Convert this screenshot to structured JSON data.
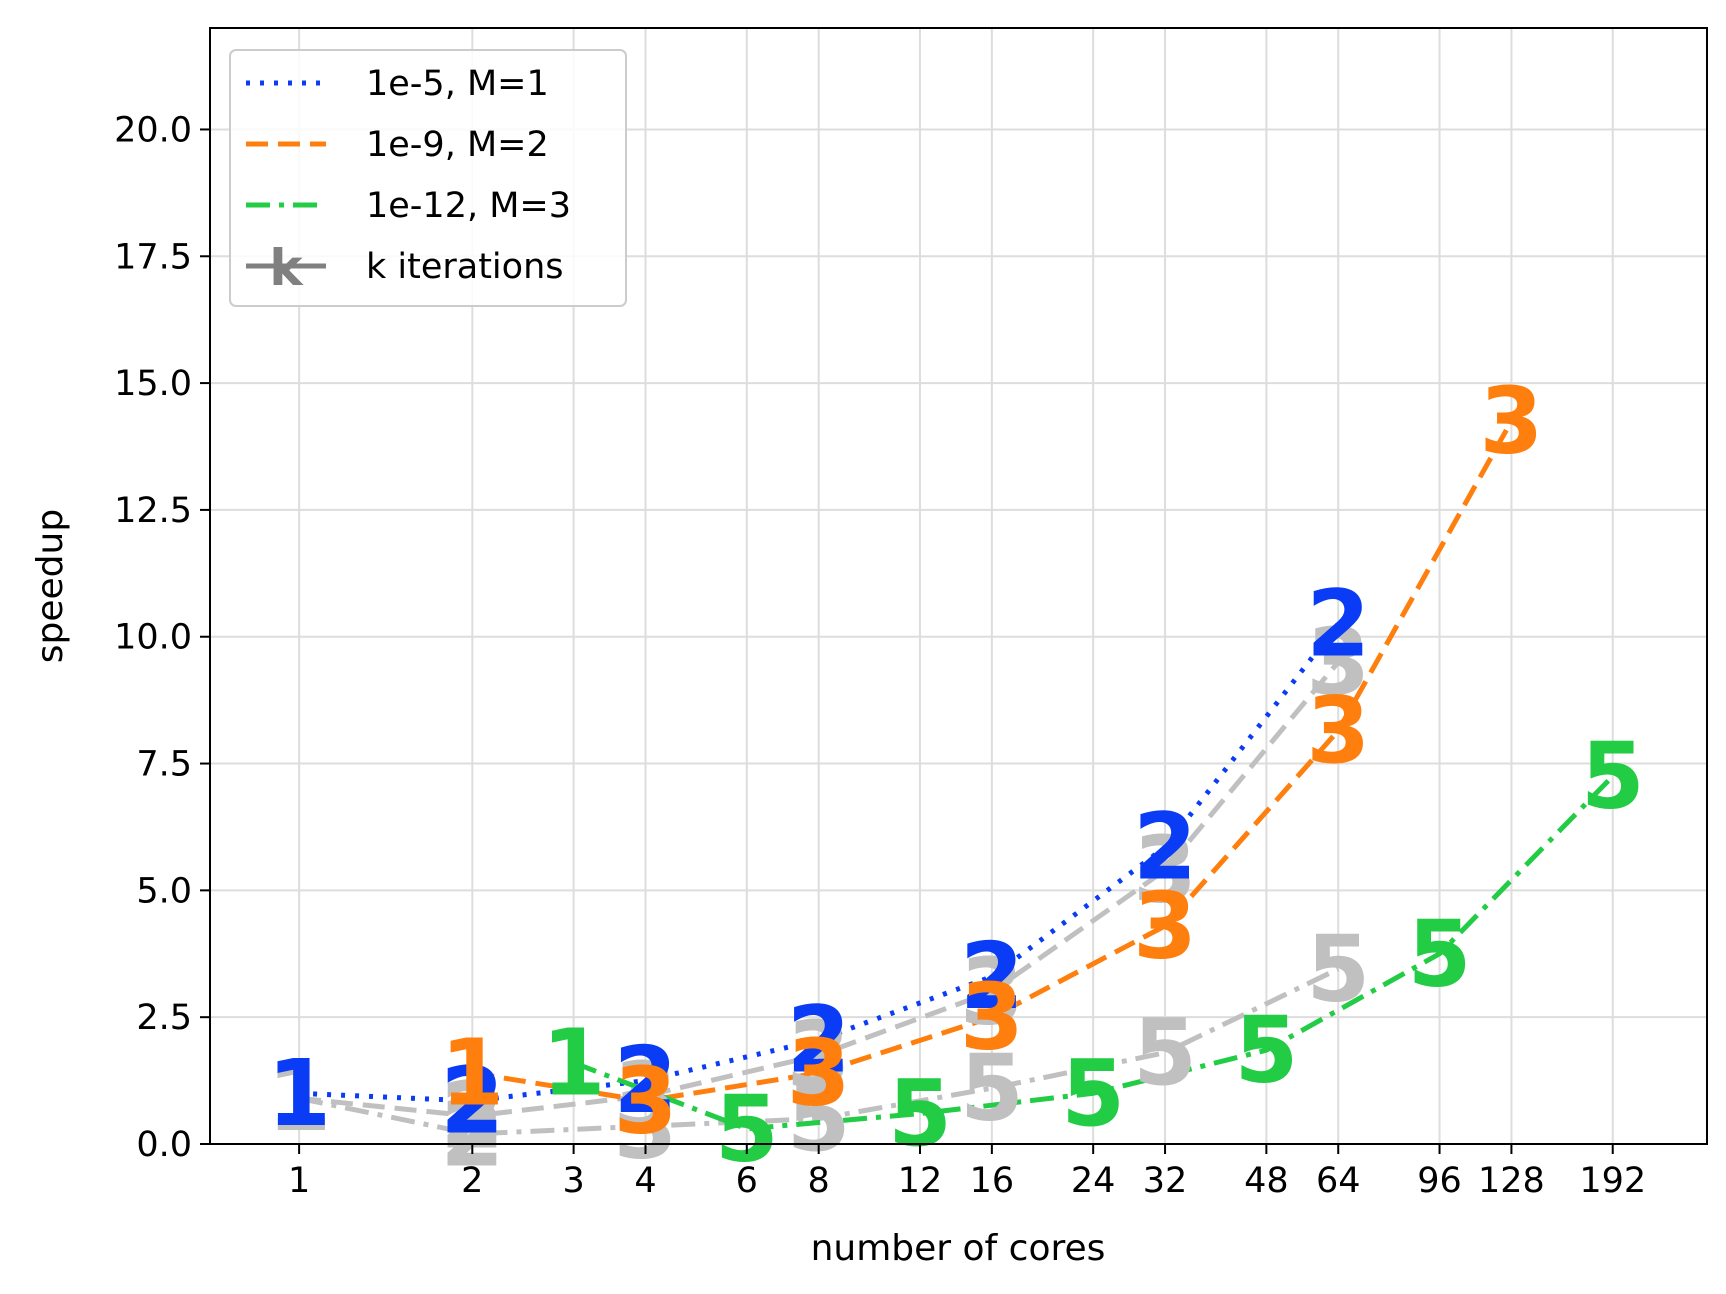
{
  "chart_data": {
    "type": "line",
    "xlabel": "number of cores",
    "ylabel": "speedup",
    "x_scale": "log2",
    "xlim": [
      0.7,
      280
    ],
    "ylim": [
      0,
      22
    ],
    "x_ticks": [
      {
        "value": 1,
        "label": "1"
      },
      {
        "value": 2,
        "label": "2"
      },
      {
        "value": 3,
        "label": "3"
      },
      {
        "value": 4,
        "label": "4"
      },
      {
        "value": 6,
        "label": "6"
      },
      {
        "value": 8,
        "label": "8"
      },
      {
        "value": 12,
        "label": "12"
      },
      {
        "value": 16,
        "label": "16"
      },
      {
        "value": 24,
        "label": "24"
      },
      {
        "value": 32,
        "label": "32"
      },
      {
        "value": 48,
        "label": "48"
      },
      {
        "value": 64,
        "label": "64"
      },
      {
        "value": 96,
        "label": "96"
      },
      {
        "value": 128,
        "label": "128"
      },
      {
        "value": 192,
        "label": "192"
      }
    ],
    "y_ticks": [
      {
        "value": 0,
        "label": "0.0"
      },
      {
        "value": 2.5,
        "label": "2.5"
      },
      {
        "value": 5,
        "label": "5.0"
      },
      {
        "value": 7.5,
        "label": "7.5"
      },
      {
        "value": 10,
        "label": "10.0"
      },
      {
        "value": 12.5,
        "label": "12.5"
      },
      {
        "value": 15,
        "label": "15.0"
      },
      {
        "value": 17.5,
        "label": "17.5"
      },
      {
        "value": 20,
        "label": "20.0"
      }
    ],
    "grid": true,
    "legend_position": "top-left",
    "series": [
      {
        "name": "1e-5, M=1",
        "color": "#0a3cf5",
        "dash": "dotted",
        "points": [
          {
            "x": 1,
            "y": 1.0,
            "k": "1"
          },
          {
            "x": 2,
            "y": 0.85,
            "k": "2"
          },
          {
            "x": 4,
            "y": 1.25,
            "k": "2"
          },
          {
            "x": 8,
            "y": 2.05,
            "k": "2"
          },
          {
            "x": 16,
            "y": 3.3,
            "k": "2"
          },
          {
            "x": 32,
            "y": 5.85,
            "k": "2"
          },
          {
            "x": 64,
            "y": 10.25,
            "k": "2"
          }
        ]
      },
      {
        "name": "1e-9, M=2",
        "color": "#ff7f0e",
        "dash": "dashed",
        "points": [
          {
            "x": 2,
            "y": 1.4,
            "k": "1"
          },
          {
            "x": 4,
            "y": 0.85,
            "k": "3"
          },
          {
            "x": 8,
            "y": 1.4,
            "k": "3"
          },
          {
            "x": 16,
            "y": 2.5,
            "k": "3"
          },
          {
            "x": 32,
            "y": 4.3,
            "k": "3"
          },
          {
            "x": 64,
            "y": 8.15,
            "k": "3"
          },
          {
            "x": 128,
            "y": 14.25,
            "k": "3"
          }
        ]
      },
      {
        "name": "1e-12, M=3",
        "color": "#22cc44",
        "dash": "dashdot",
        "points": [
          {
            "x": 3,
            "y": 1.6,
            "k": "1"
          },
          {
            "x": 6,
            "y": 0.3,
            "k": "5"
          },
          {
            "x": 12,
            "y": 0.6,
            "k": "5"
          },
          {
            "x": 24,
            "y": 1.0,
            "k": "5"
          },
          {
            "x": 48,
            "y": 1.85,
            "k": "5"
          },
          {
            "x": 96,
            "y": 3.75,
            "k": "5"
          },
          {
            "x": 192,
            "y": 7.25,
            "k": "5"
          }
        ]
      }
    ],
    "reference_series": [
      {
        "color": "#c0c0c0",
        "dash": "dashed",
        "points": [
          {
            "x": 1,
            "y": 0.9,
            "k": "1"
          },
          {
            "x": 2,
            "y": 0.55,
            "k": "2"
          },
          {
            "x": 4,
            "y": 0.95,
            "k": "3"
          },
          {
            "x": 8,
            "y": 1.75,
            "k": "3"
          },
          {
            "x": 16,
            "y": 3.0,
            "k": "3"
          },
          {
            "x": 32,
            "y": 5.4,
            "k": "3"
          },
          {
            "x": 64,
            "y": 9.5,
            "k": "3"
          }
        ]
      },
      {
        "color": "#c0c0c0",
        "dash": "dashdot",
        "points": [
          {
            "x": 1,
            "y": 0.9,
            "k": "1"
          },
          {
            "x": 2,
            "y": 0.2,
            "k": "2"
          },
          {
            "x": 4,
            "y": 0.35,
            "k": "3"
          },
          {
            "x": 8,
            "y": 0.5,
            "k": "5"
          },
          {
            "x": 16,
            "y": 1.1,
            "k": "5"
          },
          {
            "x": 32,
            "y": 1.8,
            "k": "5"
          },
          {
            "x": 64,
            "y": 3.45,
            "k": "5"
          }
        ]
      }
    ],
    "legend": [
      {
        "label": "1e-5, M=1",
        "color": "#0a3cf5",
        "dash": "dotted"
      },
      {
        "label": "1e-9, M=2",
        "color": "#ff7f0e",
        "dash": "dashed"
      },
      {
        "label": "1e-12, M=3",
        "color": "#22cc44",
        "dash": "dashdot"
      },
      {
        "label": "k iterations",
        "color": "#808080",
        "dash": "solid",
        "marker": "k"
      }
    ]
  }
}
